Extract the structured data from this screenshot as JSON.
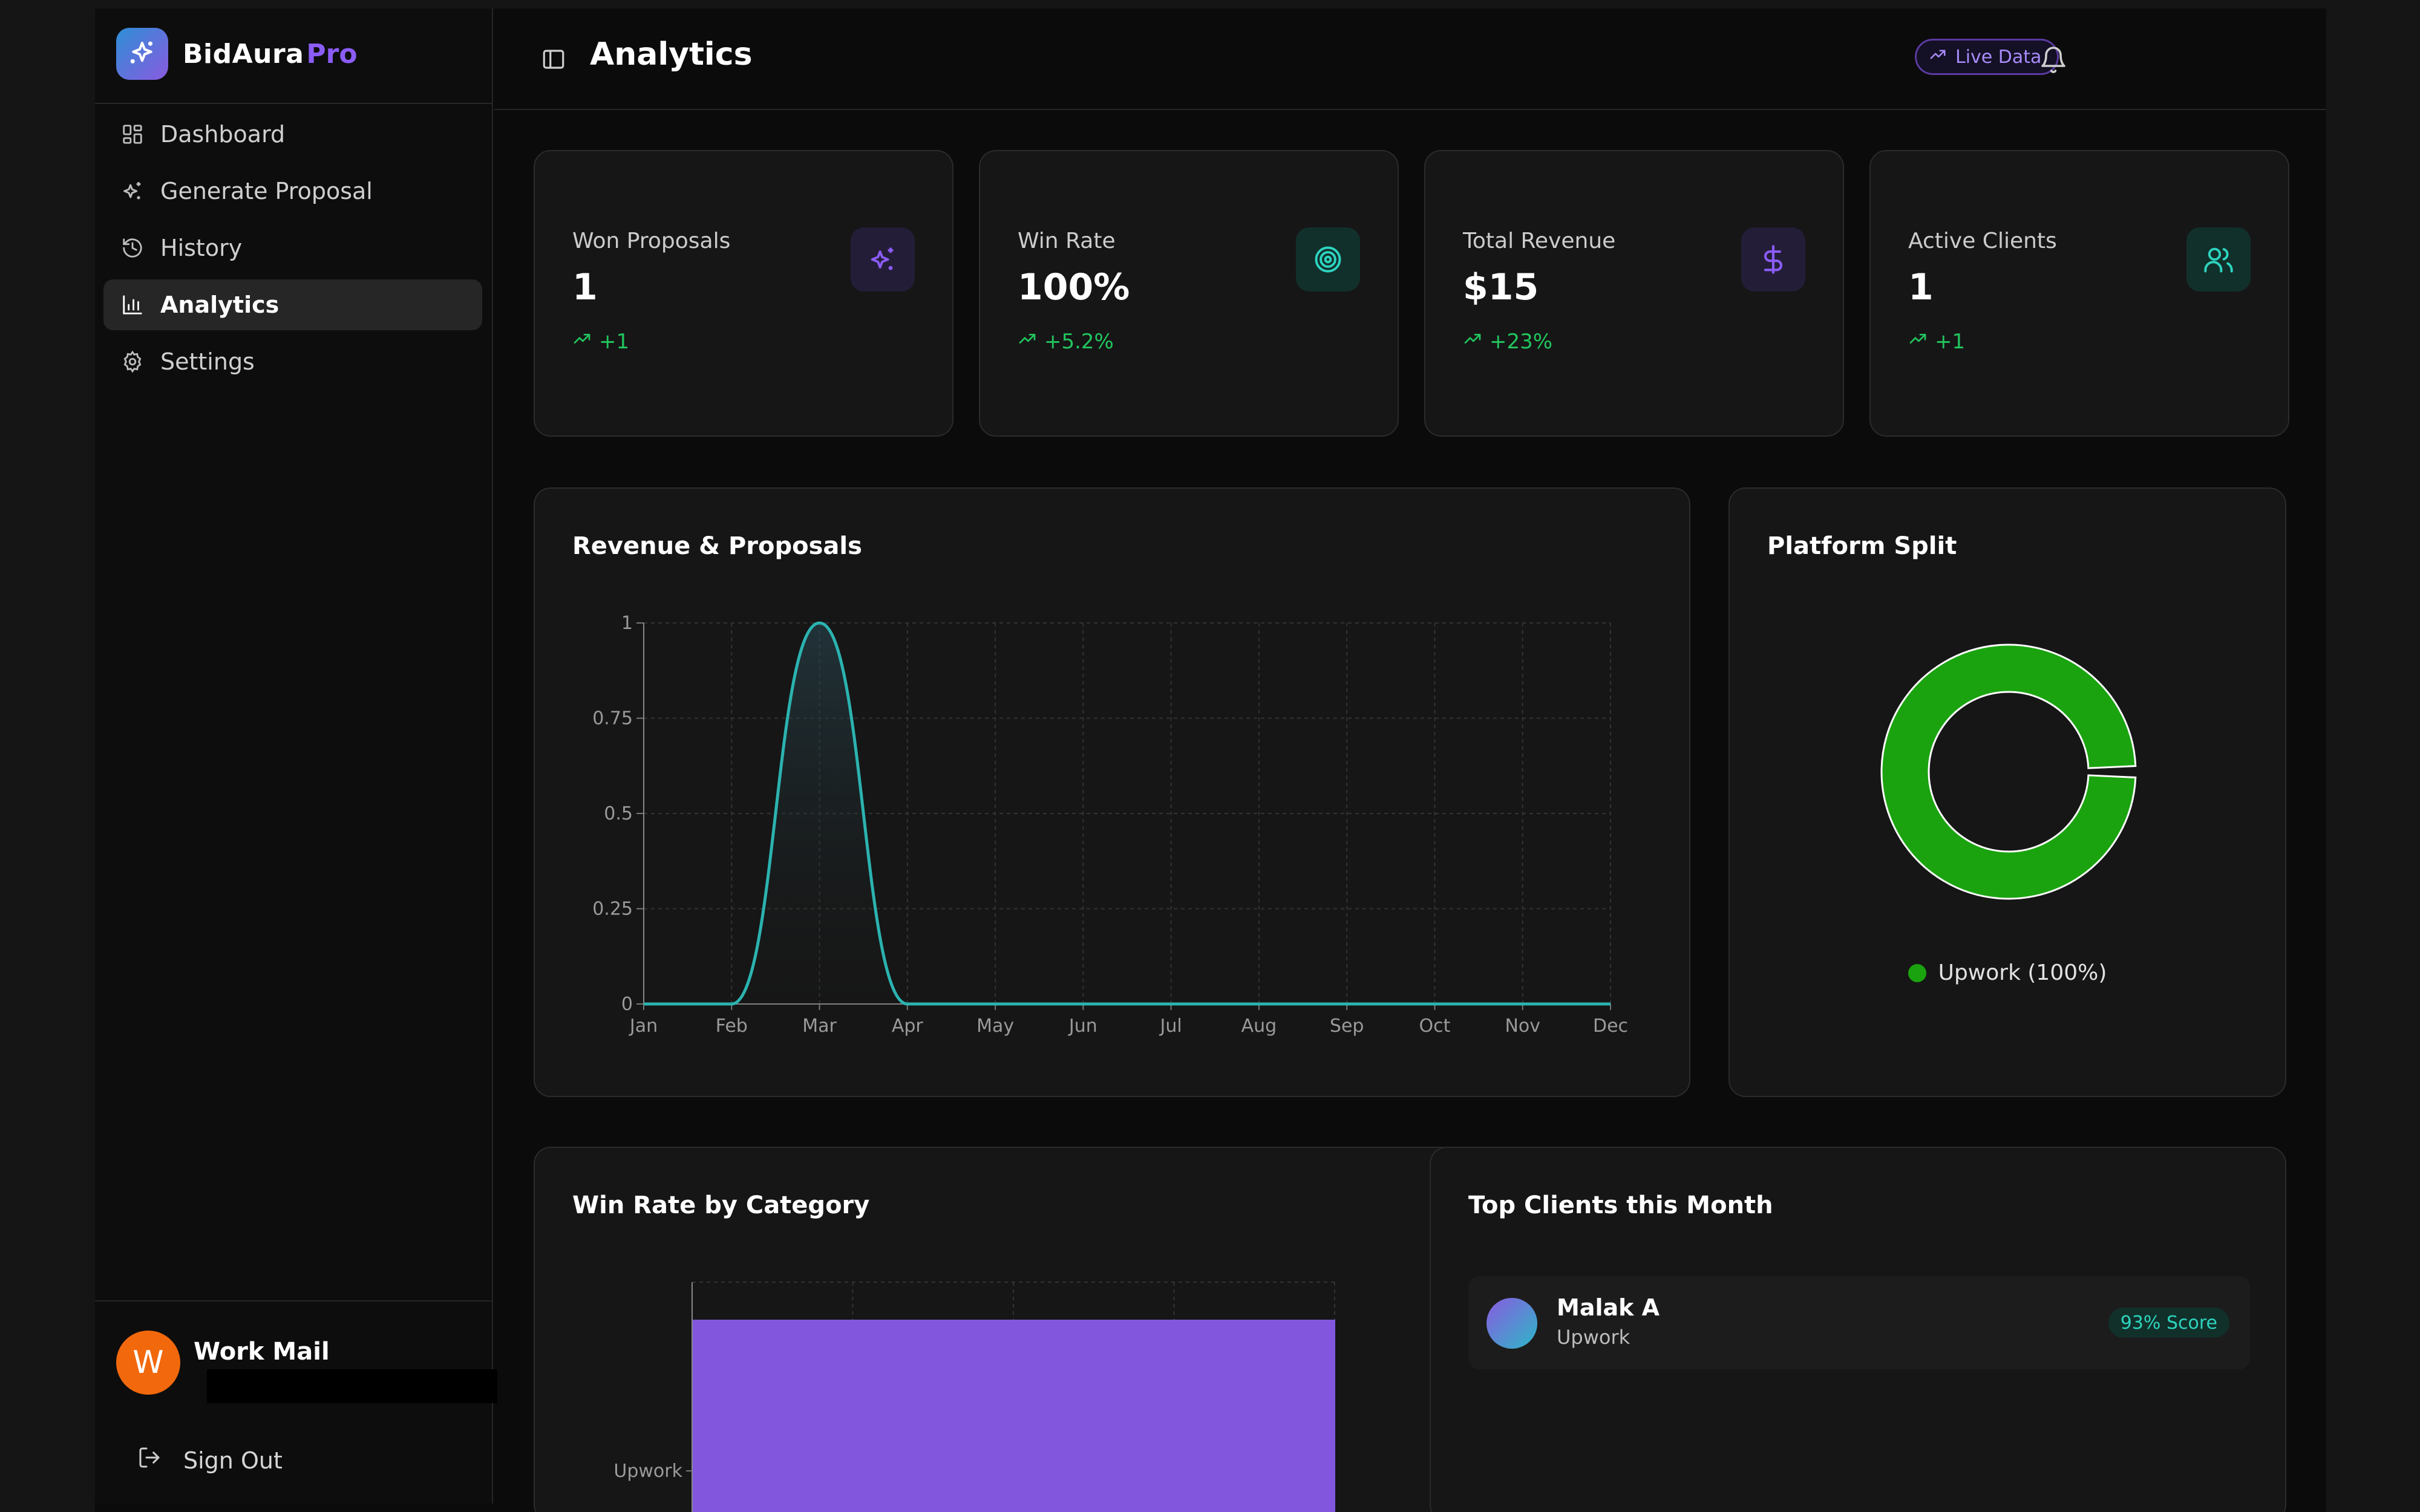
{
  "brand": {
    "name": "BidAura",
    "suffix": "Pro",
    "logo_icon": "sparkles-icon"
  },
  "sidebar": {
    "items": [
      {
        "label": "Dashboard",
        "icon": "dashboard-icon",
        "active": false
      },
      {
        "label": "Generate Proposal",
        "icon": "sparkles-icon",
        "active": false
      },
      {
        "label": "History",
        "icon": "history-icon",
        "active": false
      },
      {
        "label": "Analytics",
        "icon": "bar-chart-icon",
        "active": true
      },
      {
        "label": "Settings",
        "icon": "gear-icon",
        "active": false
      }
    ],
    "user": {
      "initial": "W",
      "name": "Work Mail",
      "avatar_color": "#f1680d"
    },
    "sign_out_label": "Sign Out"
  },
  "header": {
    "title": "Analytics",
    "live_badge": "Live Data"
  },
  "stats": [
    {
      "label": "Won Proposals",
      "value": "1",
      "change": "+1",
      "icon": "sparkles-icon",
      "icon_color": "#8b5cf6"
    },
    {
      "label": "Win Rate",
      "value": "100%",
      "change": "+5.2%",
      "icon": "target-icon",
      "icon_color": "#2dd4bf"
    },
    {
      "label": "Total Revenue",
      "value": "$15",
      "change": "+23%",
      "icon": "dollar-icon",
      "icon_color": "#8b5cf6"
    },
    {
      "label": "Active Clients",
      "value": "1",
      "change": "+1",
      "icon": "users-icon",
      "icon_color": "#2dd4bf"
    }
  ],
  "revenue_chart": {
    "title": "Revenue & Proposals"
  },
  "platform_split": {
    "title": "Platform Split",
    "legend": "Upwork (100%)"
  },
  "win_rate_chart": {
    "title": "Win Rate by Category"
  },
  "top_clients": {
    "title": "Top Clients this Month",
    "clients": [
      {
        "name": "Malak A",
        "platform": "Upwork",
        "score": "93% Score"
      }
    ]
  },
  "colors": {
    "accent_purple": "#8b5cf6",
    "accent_teal": "#2dd4bf",
    "positive_green": "#22c55e",
    "donut_green": "#1aa30f",
    "bar_purple": "#8257dd"
  },
  "chart_data": [
    {
      "type": "area",
      "title": "Revenue & Proposals",
      "categories": [
        "Jan",
        "Feb",
        "Mar",
        "Apr",
        "May",
        "Jun",
        "Jul",
        "Aug",
        "Sep",
        "Oct",
        "Nov",
        "Dec"
      ],
      "values": [
        0,
        0,
        1,
        0,
        0,
        0,
        0,
        0,
        0,
        0,
        0,
        0
      ],
      "yticks": [
        "0",
        "0.25",
        "0.5",
        "0.75",
        "1"
      ],
      "ylim": [
        0,
        1
      ],
      "grid": true
    },
    {
      "type": "pie",
      "title": "Platform Split",
      "labels": [
        "Upwork"
      ],
      "values": [
        100
      ]
    },
    {
      "type": "bar",
      "title": "Win Rate by Category",
      "orientation": "horizontal",
      "categories": [
        "Upwork"
      ],
      "values": [
        100
      ],
      "grid": true
    }
  ]
}
